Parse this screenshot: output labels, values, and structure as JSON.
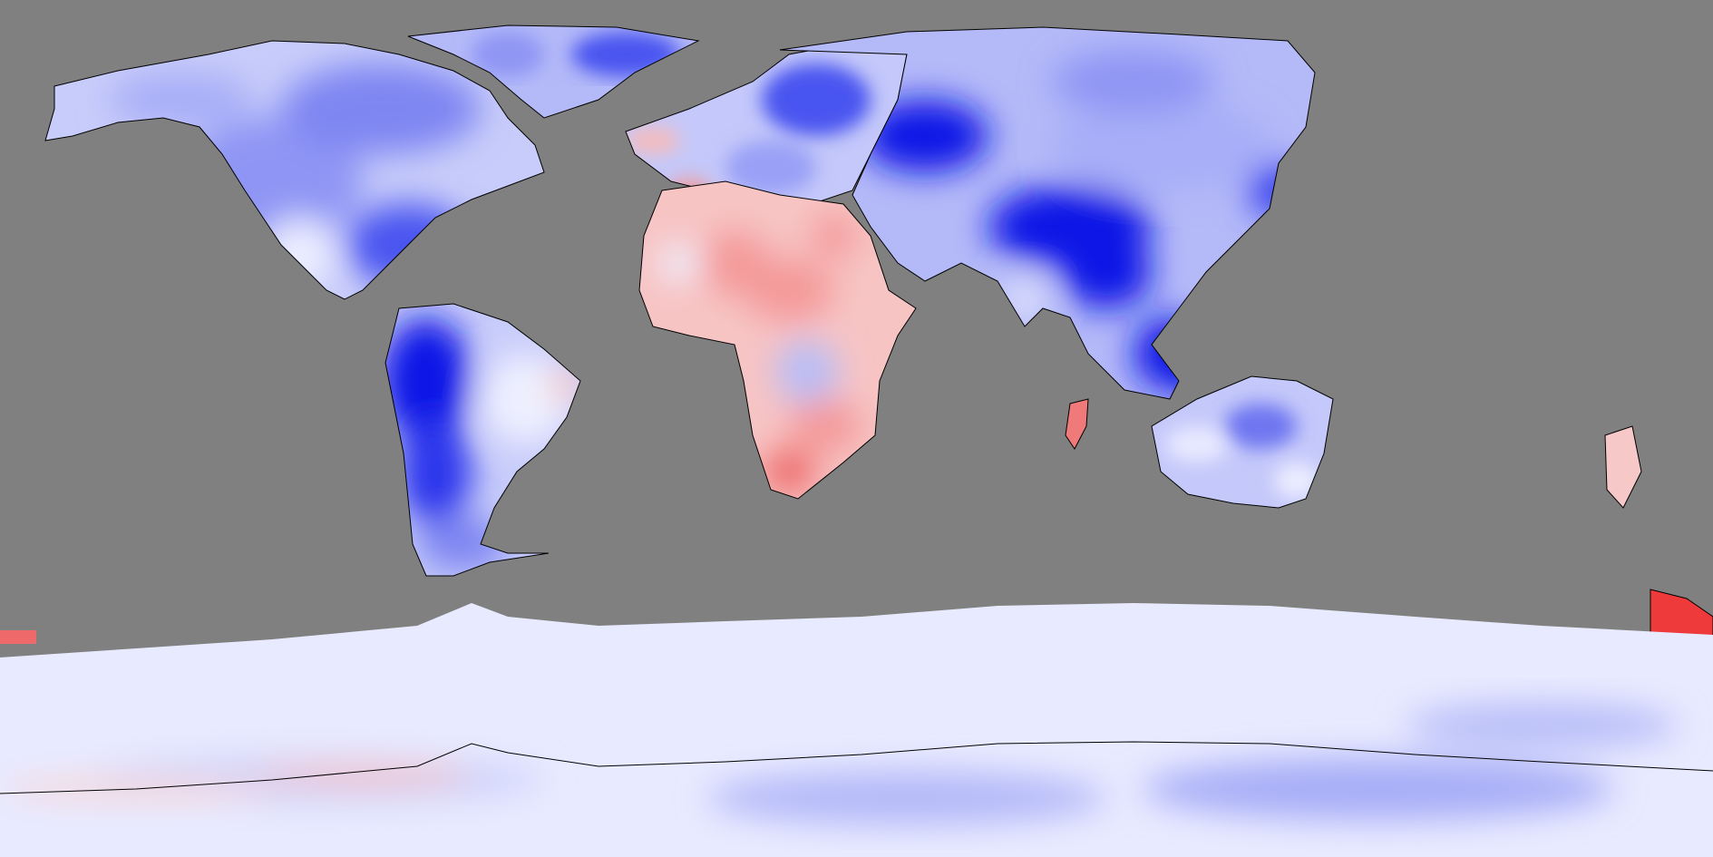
{
  "map": {
    "projection": "equirectangular",
    "extent": {
      "lon": [
        -180,
        180
      ],
      "lat": [
        -90,
        90
      ]
    },
    "ocean_color": "#808080",
    "coastline_color": "#000000",
    "palette": {
      "strong_negative": "#0a14e6",
      "negative": "#5a64f0",
      "weak_negative": "#b4b9f8",
      "neutral": "#f4f4ff",
      "weak_positive": "#fbd3d3",
      "positive": "#f49a9a",
      "strong_positive": "#ee3a3a"
    },
    "regions": [
      {
        "name": "north-america",
        "sign": "negative"
      },
      {
        "name": "greenland",
        "sign": "negative"
      },
      {
        "name": "south-america",
        "sign": "strong-negative"
      },
      {
        "name": "europe",
        "sign": "negative"
      },
      {
        "name": "asia",
        "sign": "strong-negative"
      },
      {
        "name": "africa",
        "sign": "positive"
      },
      {
        "name": "australia",
        "sign": "negative"
      },
      {
        "name": "new-zealand",
        "sign": "strong-positive"
      },
      {
        "name": "madagascar",
        "sign": "positive"
      },
      {
        "name": "antarctica",
        "sign": "weak-negative"
      }
    ]
  }
}
